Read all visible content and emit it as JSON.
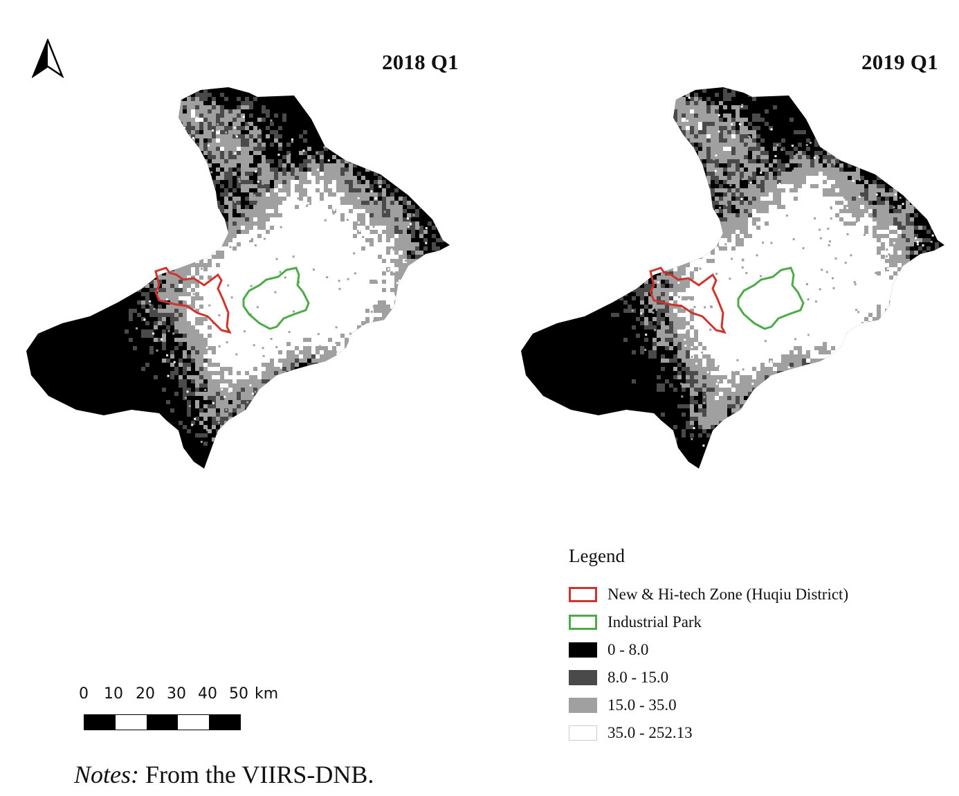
{
  "north_arrow": {
    "icon": "north-arrow-icon"
  },
  "maps": [
    {
      "title": "2018 Q1"
    },
    {
      "title": "2019 Q1"
    }
  ],
  "legend": {
    "title": "Legend",
    "items": [
      {
        "label": "New & Hi-tech Zone (Huqiu District)",
        "type": "outline",
        "color": "#d0322c"
      },
      {
        "label": "Industrial Park",
        "type": "outline",
        "color": "#4caa48"
      },
      {
        "label": "0 - 8.0",
        "type": "fill",
        "color": "#000000"
      },
      {
        "label": "8.0 - 15.0",
        "type": "fill",
        "color": "#4a4a4a"
      },
      {
        "label": "15.0 - 35.0",
        "type": "fill",
        "color": "#a0a0a0"
      },
      {
        "label": "35.0 - 252.13",
        "type": "fill",
        "color": "#ffffff"
      }
    ]
  },
  "scale_bar": {
    "labels": [
      "0",
      "10",
      "20",
      "30",
      "40",
      "50"
    ],
    "unit": "km"
  },
  "notes": {
    "prefix": "Notes:",
    "text": "From the VIIRS-DNB."
  }
}
